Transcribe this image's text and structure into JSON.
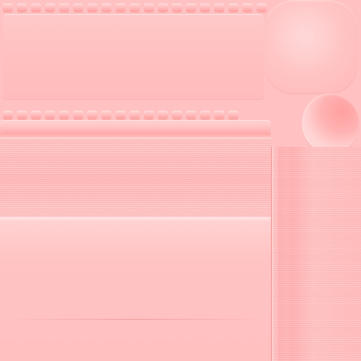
{
  "palette": {
    "base": "#ffc1c1",
    "light": "#ffe0e0",
    "dark": "#ff9a9a"
  },
  "texture": {
    "top_studs": 19,
    "mid_studs": 17
  }
}
